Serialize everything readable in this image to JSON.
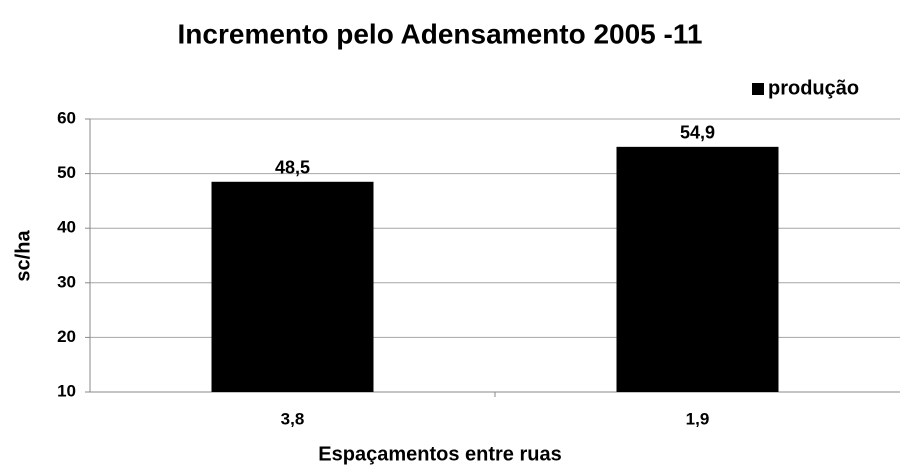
{
  "chart_data": {
    "type": "bar",
    "title": "Incremento pelo Adensamento  2005 -11",
    "x_label": "Espaçamentos entre ruas",
    "y_label": "sc/ha",
    "categories": [
      "3,8",
      "1,9"
    ],
    "series": [
      {
        "name": "produção",
        "color": "#000000",
        "values": [
          48.5,
          54.9
        ],
        "value_labels": [
          "48,5",
          "54,9"
        ]
      }
    ],
    "ylim": [
      10,
      60
    ],
    "yticks": [
      10,
      20,
      30,
      40,
      50,
      60
    ],
    "grid": true,
    "legend": "top-right"
  }
}
